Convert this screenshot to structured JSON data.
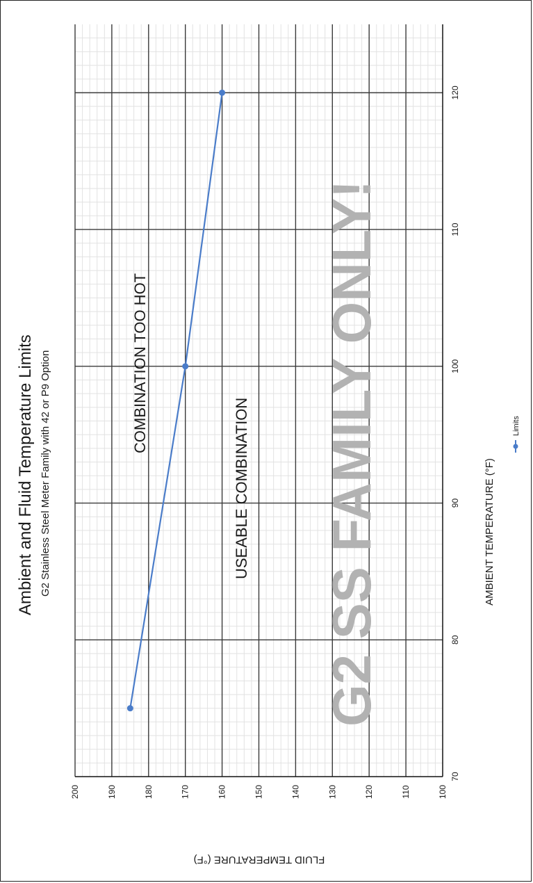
{
  "chart_data": {
    "type": "line",
    "title": "Ambient and Fluid Temperature Limits",
    "subtitle": "G2 Stainless Steel Meter Family with 42 or P9 Option",
    "xlabel": "AMBIENT TEMPERATURE (°F)",
    "ylabel": "FLUID TEMPERATURE (°F)",
    "xlim": [
      70,
      125
    ],
    "ylim": [
      100,
      200
    ],
    "x_ticks": [
      "70",
      "80",
      "90",
      "100",
      "110",
      "120"
    ],
    "y_ticks": [
      "100",
      "110",
      "120",
      "130",
      "140",
      "150",
      "160",
      "170",
      "180",
      "190",
      "200"
    ],
    "grid": true,
    "orientation": "rotated 90° clockwise",
    "legend": {
      "placement": "bottom",
      "entries": [
        "Limits"
      ]
    },
    "series": [
      {
        "name": "Limits",
        "color": "#4a7cc9",
        "x": [
          75,
          100,
          120
        ],
        "y": [
          185,
          170,
          160
        ]
      }
    ],
    "annotations": {
      "too_hot": "COMBINATION TOO HOT",
      "useable": "USEABLE COMBINATION",
      "watermark": "G2 SS FAMILY ONLY!"
    }
  }
}
